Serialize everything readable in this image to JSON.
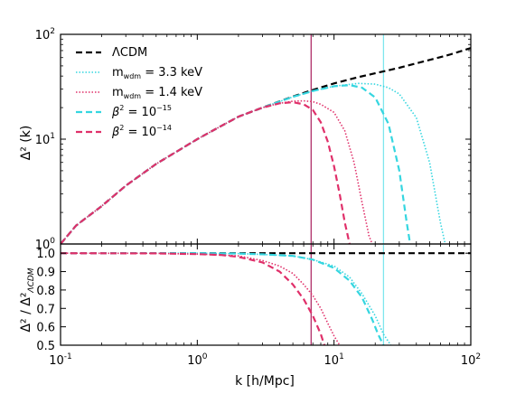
{
  "chart_data": {
    "type": "line",
    "xscale": "log",
    "xlim": [
      0.1,
      100
    ],
    "xlabel": "k [h/Mpc]",
    "xticks": [
      {
        "value": 0.1,
        "label": "10^-1"
      },
      {
        "value": 1,
        "label": "10^0"
      },
      {
        "value": 10,
        "label": "10^1"
      },
      {
        "value": 100,
        "label": "10^2"
      }
    ],
    "colors": {
      "lcdm": "#000000",
      "cyan": "#35d6e0",
      "magenta": "#e0306a",
      "vline_cyan": "#7ee6ee",
      "vline_magenta": "#b0306a"
    },
    "vlines": [
      {
        "x": 6.8,
        "color_key": "vline_magenta"
      },
      {
        "x": 23,
        "color_key": "vline_cyan"
      }
    ],
    "legend": {
      "placement": "upper-left",
      "entries": [
        {
          "label": "ΛCDM",
          "color_key": "lcdm",
          "style": "dashed"
        },
        {
          "label_main": "m",
          "label_sub": "wdm",
          "label_rest": " = 3.3 keV",
          "color_key": "cyan",
          "style": "dotted"
        },
        {
          "label_main": "m",
          "label_sub": "wdm",
          "label_rest": " = 1.4 keV",
          "color_key": "magenta",
          "style": "dotted"
        },
        {
          "label_main": "β",
          "label_sup": "2",
          "label_rest": " = 10",
          "label_exp": "−15",
          "color_key": "cyan",
          "style": "dashed"
        },
        {
          "label_main": "β",
          "label_sup": "2",
          "label_rest": " = 10",
          "label_exp": "−14",
          "color_key": "magenta",
          "style": "dashed"
        }
      ]
    },
    "panels": [
      {
        "id": "top",
        "ylabel": "Δ² (k)",
        "yscale": "log",
        "ylim": [
          1,
          100
        ],
        "yticks": [
          {
            "value": 1,
            "label": "10^0"
          },
          {
            "value": 10,
            "label": "10^1"
          },
          {
            "value": 100,
            "label": "10^2"
          }
        ],
        "series": [
          {
            "name": "ΛCDM",
            "color_key": "lcdm",
            "style": "dashed",
            "x": [
              0.1,
              0.13,
              0.2,
              0.3,
              0.5,
              0.8,
              1.0,
              1.5,
              2.0,
              3.0,
              5.0,
              7.0,
              10,
              15,
              20,
              30,
              50,
              70,
              100
            ],
            "y": [
              1.0,
              1.5,
              2.3,
              3.6,
              5.8,
              8.4,
              10.0,
              13.4,
              16.4,
              20.0,
              25.5,
              29.5,
              34.0,
              39.0,
              42.5,
              48.0,
              57.0,
              64.0,
              74.0
            ]
          },
          {
            "name": "m_wdm = 3.3 keV",
            "color_key": "cyan",
            "style": "dotted",
            "x": [
              0.1,
              0.13,
              0.2,
              0.3,
              0.5,
              0.8,
              1.0,
              1.5,
              2.0,
              3.0,
              5.0,
              7.0,
              10,
              15,
              20,
              25,
              30,
              40,
              50,
              60,
              65
            ],
            "y": [
              1.0,
              1.5,
              2.3,
              3.6,
              5.8,
              8.4,
              10.0,
              13.4,
              16.4,
              20.0,
              25.3,
              28.8,
              32.0,
              34.0,
              33.5,
              31.0,
              27.0,
              16.0,
              6.0,
              1.6,
              1.0
            ]
          },
          {
            "name": "m_wdm = 1.4 keV",
            "color_key": "magenta",
            "style": "dotted",
            "x": [
              0.1,
              0.13,
              0.2,
              0.3,
              0.5,
              0.8,
              1.0,
              1.5,
              2.0,
              3.0,
              4.0,
              5.0,
              6.0,
              7.0,
              8.0,
              10,
              12,
              14,
              16,
              18,
              19
            ],
            "y": [
              1.0,
              1.5,
              2.3,
              3.6,
              5.8,
              8.4,
              10.0,
              13.4,
              16.4,
              20.0,
              22.0,
              23.0,
              23.2,
              22.8,
              21.5,
              18.0,
              12.0,
              6.0,
              2.5,
              1.2,
              1.0
            ]
          },
          {
            "name": "β² = 10^-15",
            "color_key": "cyan",
            "style": "dashed",
            "x": [
              0.1,
              0.13,
              0.2,
              0.3,
              0.5,
              0.8,
              1.0,
              1.5,
              2.0,
              3.0,
              5.0,
              7.0,
              10,
              13,
              16,
              20,
              25,
              30,
              34,
              36
            ],
            "y": [
              1.0,
              1.5,
              2.3,
              3.6,
              5.8,
              8.4,
              10.0,
              13.4,
              16.4,
              20.0,
              25.3,
              28.8,
              32.0,
              32.8,
              31.0,
              25.0,
              14.0,
              5.0,
              1.6,
              1.0
            ]
          },
          {
            "name": "β² = 10^-14",
            "color_key": "magenta",
            "style": "dashed",
            "x": [
              0.1,
              0.13,
              0.2,
              0.3,
              0.5,
              0.8,
              1.0,
              1.5,
              2.0,
              3.0,
              4.0,
              5.0,
              6.0,
              7.0,
              8.0,
              9.0,
              10,
              11,
              12,
              13
            ],
            "y": [
              1.0,
              1.5,
              2.3,
              3.6,
              5.8,
              8.4,
              10.0,
              13.4,
              16.4,
              20.0,
              22.0,
              22.5,
              21.5,
              19.0,
              14.5,
              9.5,
              5.5,
              3.0,
              1.6,
              1.0
            ]
          }
        ]
      },
      {
        "id": "bottom",
        "ylabel_main": "Δ² / Δ²",
        "ylabel_sub": "ΛCDM",
        "yscale": "linear",
        "ylim": [
          0.5,
          1.05
        ],
        "yticks": [
          {
            "value": 0.5,
            "label": "0.5"
          },
          {
            "value": 0.6,
            "label": "0.6"
          },
          {
            "value": 0.7,
            "label": "0.7"
          },
          {
            "value": 0.8,
            "label": "0.8"
          },
          {
            "value": 0.9,
            "label": "0.9"
          },
          {
            "value": 1.0,
            "label": "1.0"
          }
        ],
        "series": [
          {
            "name": "ΛCDM",
            "color_key": "lcdm",
            "style": "dashed",
            "x": [
              0.1,
              100
            ],
            "y": [
              1.0,
              1.0
            ]
          },
          {
            "name": "m_wdm = 3.3 keV",
            "color_key": "cyan",
            "style": "dotted",
            "x": [
              0.1,
              0.5,
              1.0,
              2.0,
              3.0,
              5.0,
              7.0,
              10,
              13,
              16,
              20,
              23,
              26
            ],
            "y": [
              1.0,
              1.0,
              1.0,
              0.998,
              0.993,
              0.985,
              0.965,
              0.93,
              0.87,
              0.78,
              0.66,
              0.56,
              0.5
            ]
          },
          {
            "name": "m_wdm = 1.4 keV",
            "color_key": "magenta",
            "style": "dotted",
            "x": [
              0.1,
              0.5,
              1.0,
              1.5,
              2.0,
              3.0,
              4.0,
              5.0,
              6.0,
              7.0,
              8.0,
              9.0,
              10,
              11
            ],
            "y": [
              1.0,
              0.999,
              0.995,
              0.99,
              0.985,
              0.96,
              0.93,
              0.89,
              0.83,
              0.77,
              0.7,
              0.62,
              0.55,
              0.5
            ]
          },
          {
            "name": "β² = 10^-15",
            "color_key": "cyan",
            "style": "dashed",
            "x": [
              0.1,
              0.5,
              1.0,
              2.0,
              3.0,
              5.0,
              7.0,
              10,
              13,
              16,
              19,
              21,
              23
            ],
            "y": [
              1.0,
              1.0,
              1.0,
              0.998,
              0.994,
              0.985,
              0.965,
              0.92,
              0.85,
              0.76,
              0.64,
              0.56,
              0.5
            ]
          },
          {
            "name": "β² = 10^-14",
            "color_key": "magenta",
            "style": "dashed",
            "x": [
              0.1,
              0.5,
              1.0,
              1.5,
              2.0,
              3.0,
              4.0,
              5.0,
              6.0,
              7.0,
              8.0,
              8.5
            ],
            "y": [
              1.0,
              0.999,
              0.995,
              0.99,
              0.98,
              0.95,
              0.9,
              0.83,
              0.75,
              0.66,
              0.56,
              0.5
            ]
          }
        ]
      }
    ]
  }
}
